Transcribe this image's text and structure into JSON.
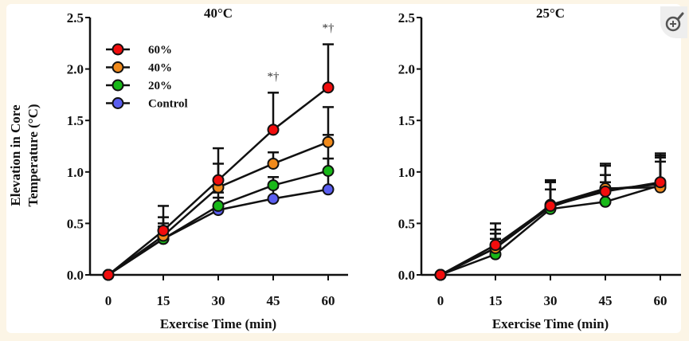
{
  "zoom_button": {
    "icon": "zoom-in-icon",
    "label": "Zoom in"
  },
  "shared": {
    "ylabel_line1": "Elevation in Core",
    "ylabel_line2": "Temperature (°C)"
  },
  "legend": [
    {
      "name": "60%",
      "color": "#f20d0d"
    },
    {
      "name": "40%",
      "color": "#f08a1c"
    },
    {
      "name": "20%",
      "color": "#18b818"
    },
    {
      "name": "Control",
      "color": "#5a5ef0"
    }
  ],
  "chart_data": [
    {
      "type": "line",
      "title": "40°C",
      "xlabel": "Exercise Time (min)",
      "ylabel": "Elevation in Core Temperature (°C)",
      "x": [
        0,
        15,
        30,
        45,
        60
      ],
      "x_ticks": [
        "0",
        "15",
        "30",
        "45",
        "60"
      ],
      "y_ticks": [
        "0.0",
        "0.5",
        "1.0",
        "1.5",
        "2.0",
        "2.5"
      ],
      "ylim": [
        0,
        2.5
      ],
      "grid": false,
      "legend_position": "top-left",
      "series": [
        {
          "name": "60%",
          "values": [
            0,
            0.43,
            0.92,
            1.41,
            1.82
          ],
          "error_upper": [
            0,
            0.67,
            1.23,
            1.77,
            2.24
          ]
        },
        {
          "name": "40%",
          "values": [
            0,
            0.38,
            0.85,
            1.08,
            1.29
          ],
          "error_upper": [
            0,
            0.56,
            1.08,
            1.19,
            1.63
          ]
        },
        {
          "name": "20%",
          "values": [
            0,
            0.35,
            0.67,
            0.87,
            1.01
          ],
          "error_upper": [
            0,
            0.5,
            0.8,
            0.95,
            1.13
          ]
        },
        {
          "name": "Control",
          "values": [
            0,
            0.35,
            0.63,
            0.74,
            0.83
          ],
          "error_upper": [
            0,
            0.47,
            0.75,
            0.85,
            1.36
          ]
        }
      ],
      "annotations": [
        {
          "x": 45,
          "text": "*†"
        },
        {
          "x": 60,
          "text": "*†"
        }
      ]
    },
    {
      "type": "line",
      "title": "25°C",
      "xlabel": "Exercise Time (min)",
      "ylabel": "",
      "x": [
        0,
        15,
        30,
        45,
        60
      ],
      "x_ticks": [
        "0",
        "15",
        "30",
        "45",
        "60"
      ],
      "y_ticks": [
        "0.0",
        "0.5",
        "1.0",
        "1.5",
        "2.0",
        "2.5"
      ],
      "ylim": [
        0,
        2.5
      ],
      "grid": false,
      "series": [
        {
          "name": "60%",
          "values": [
            0,
            0.29,
            0.67,
            0.81,
            0.9
          ],
          "error_upper": [
            0,
            0.5,
            0.92,
            1.08,
            1.18
          ]
        },
        {
          "name": "40%",
          "values": [
            0,
            0.26,
            0.68,
            0.84,
            0.85
          ],
          "error_upper": [
            0,
            0.44,
            0.91,
            1.06,
            1.16
          ]
        },
        {
          "name": "20%",
          "values": [
            0,
            0.2,
            0.64,
            0.71,
            0.87
          ],
          "error_upper": [
            0,
            0.35,
            0.83,
            0.9,
            1.1
          ]
        },
        {
          "name": "Control",
          "values": [
            0,
            0.26,
            0.66,
            0.83,
            0.88
          ],
          "error_upper": [
            0,
            0.4,
            0.9,
            0.97,
            1.14
          ]
        }
      ],
      "annotations": []
    }
  ]
}
